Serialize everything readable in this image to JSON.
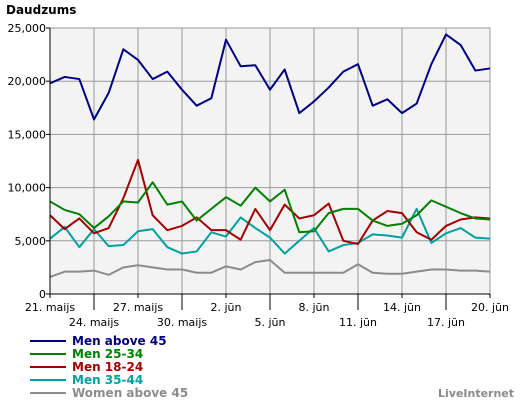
{
  "chart_data": {
    "type": "line",
    "ylabel": "Daudzums",
    "ylim": [
      0,
      25000
    ],
    "yticks": [
      "0",
      "5,000",
      "10,000",
      "15,000",
      "20,000",
      "25,000"
    ],
    "ytick_values": [
      0,
      5000,
      10000,
      15000,
      20000,
      25000
    ],
    "xlim": [
      0,
      30
    ],
    "xticks": [
      {
        "label": "21. maijs",
        "x": 0,
        "row": 0
      },
      {
        "label": "24. maijs",
        "x": 3,
        "row": 1
      },
      {
        "label": "27. maijs",
        "x": 6,
        "row": 0
      },
      {
        "label": "30. maijs",
        "x": 9,
        "row": 1
      },
      {
        "label": "2. jūn",
        "x": 12,
        "row": 0
      },
      {
        "label": "5. jūn",
        "x": 15,
        "row": 1
      },
      {
        "label": "8. jūn",
        "x": 18,
        "row": 0
      },
      {
        "label": "11. jūn",
        "x": 21,
        "row": 1
      },
      {
        "label": "14. jūn",
        "x": 24,
        "row": 0
      },
      {
        "label": "17. jūn",
        "x": 27,
        "row": 1
      },
      {
        "label": "20. jūn",
        "x": 30,
        "row": 0
      }
    ],
    "grid": true,
    "legend_position": "bottom-left",
    "series": [
      {
        "name": "Men above 45",
        "color": "#00007f",
        "values": [
          19800,
          20400,
          20200,
          16400,
          18900,
          23000,
          22000,
          20200,
          20900,
          19200,
          17700,
          18400,
          23900,
          21400,
          21500,
          19200,
          21100,
          17000,
          18100,
          19400,
          20900,
          21600,
          17700,
          18300,
          17000,
          17900,
          21600,
          24400,
          23400,
          21000,
          21200
        ]
      },
      {
        "name": "Men 25-34",
        "color": "#008000",
        "values": [
          8700,
          7900,
          7500,
          6200,
          7300,
          8700,
          8600,
          10500,
          8400,
          8700,
          6900,
          8000,
          9100,
          8300,
          10000,
          8700,
          9800,
          5800,
          5900,
          7600,
          8000,
          8000,
          6900,
          6400,
          6600,
          7400,
          8800,
          8200,
          7600,
          7100,
          7000
        ]
      },
      {
        "name": "Men 18-24",
        "color": "#a00000",
        "values": [
          7400,
          6100,
          7100,
          5700,
          6200,
          9000,
          12600,
          7400,
          6000,
          6400,
          7200,
          6000,
          6000,
          5100,
          8000,
          6000,
          8400,
          7100,
          7400,
          8500,
          5000,
          4700,
          6900,
          7800,
          7600,
          5800,
          5100,
          6400,
          7000,
          7200,
          7100
        ]
      },
      {
        "name": "Men 35-44",
        "color": "#00a0a0",
        "values": [
          5200,
          6300,
          4400,
          6100,
          4500,
          4600,
          5900,
          6100,
          4400,
          3800,
          4000,
          5800,
          5400,
          7200,
          6200,
          5300,
          3800,
          5000,
          6200,
          4000,
          4600,
          4800,
          5600,
          5500,
          5300,
          8000,
          4800,
          5700,
          6200,
          5300,
          5200
        ]
      },
      {
        "name": "Women above 45",
        "color": "#8c8c8c",
        "values": [
          1600,
          2100,
          2100,
          2200,
          1800,
          2500,
          2700,
          2500,
          2300,
          2300,
          2000,
          2000,
          2600,
          2300,
          3000,
          3200,
          2000,
          2000,
          2000,
          2000,
          2000,
          2800,
          2000,
          1900,
          1900,
          2100,
          2300,
          2300,
          2200,
          2200,
          2100
        ]
      }
    ]
  },
  "footer": "LiveInternet"
}
